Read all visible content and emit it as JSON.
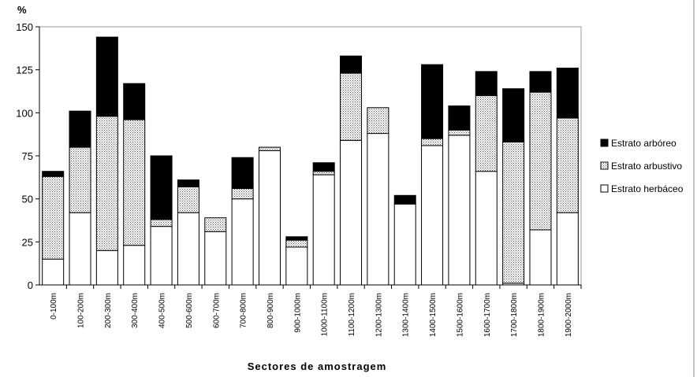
{
  "chart_data": {
    "type": "stacked_bar",
    "y_axis_label": "%",
    "x_axis_label": "Sectores de amostragem",
    "categories": [
      "0-100m",
      "100-200m",
      "200-300m",
      "300-400m",
      "400-500m",
      "500-600m",
      "600-700m",
      "700-800m",
      "800-900m",
      "900-1000m",
      "1000-1100m",
      "1100-1200m",
      "1200-1300m",
      "1300-1400m",
      "1400-1500m",
      "1500-1600m",
      "1600-1700m",
      "1700-1800m",
      "1800-1900m",
      "1900-2000m"
    ],
    "series": [
      {
        "name": "Estrato herbáceo",
        "color": "#ffffff",
        "values": [
          15,
          42,
          20,
          23,
          34,
          42,
          31,
          50,
          78,
          22,
          64,
          84,
          88,
          47,
          81,
          87,
          66,
          1,
          32,
          42
        ]
      },
      {
        "name": "Estrato arbustivo",
        "color": "#bdbdbd",
        "pattern": "dots",
        "values": [
          48,
          38,
          78,
          73,
          4,
          15,
          8,
          6,
          2,
          4,
          2,
          39,
          15,
          0,
          4,
          3,
          44,
          82,
          80,
          55
        ]
      },
      {
        "name": "Estrato arbóreo",
        "color": "#000000",
        "values": [
          3,
          21,
          46,
          21,
          37,
          4,
          0,
          18,
          0,
          2,
          5,
          10,
          0,
          5,
          43,
          14,
          14,
          31,
          12,
          29
        ]
      }
    ],
    "ylim": [
      0,
      150
    ],
    "yticks": [
      0,
      25,
      50,
      75,
      100,
      125,
      150
    ],
    "legend": "right"
  }
}
